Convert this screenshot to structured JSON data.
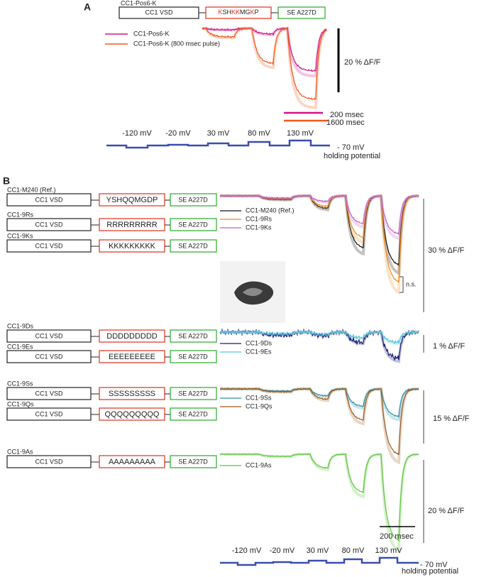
{
  "panel_a": {
    "label": "A",
    "construct": {
      "name": "CC1-Pos6-K",
      "vsd": "CC1 VSD",
      "linker_segments": [
        {
          "text": "K",
          "color": "#e0301e"
        },
        {
          "text": "SH",
          "color": "#222222"
        },
        {
          "text": "KK",
          "color": "#e0301e"
        },
        {
          "text": "MG",
          "color": "#222222"
        },
        {
          "text": "K",
          "color": "#e0301e"
        },
        {
          "text": "P",
          "color": "#222222"
        }
      ],
      "fp": "SE A227D"
    },
    "legend": [
      {
        "name": "CC1-Pos6-K",
        "color": "#d4148c"
      },
      {
        "name": "CC1-Pos6-K (800 msec pulse)",
        "color": "#f05a1e"
      }
    ],
    "scale": "20 % ΔF/F",
    "time_bars": [
      {
        "label": "200 msec",
        "color": "#d4148c"
      },
      {
        "label": "1600 msec",
        "color": "#f05a1e"
      }
    ],
    "voltages": [
      "-120 mV",
      "-20 mV",
      "30 mV",
      "80 mV",
      "130 mV"
    ],
    "holding": [
      "- 70 mV",
      "holding potential"
    ]
  },
  "panel_b": {
    "label": "B",
    "groups": [
      {
        "constructs": [
          {
            "name": "CC1-M240 (Ref.)",
            "vsd": "CC1 VSD",
            "linker": "YSHQQMGDP",
            "linker_color": "#222222",
            "fp": "SE A227D"
          },
          {
            "name": "CC1-9Rs",
            "vsd": "CC1 VSD",
            "linker": "RRRRRRRRR",
            "linker_color": "#e0301e",
            "fp": "SE A227D"
          },
          {
            "name": "CC1-9Ks",
            "vsd": "CC1 VSD",
            "linker": "KKKKKKKKK",
            "linker_color": "#e0301e",
            "fp": "SE A227D"
          }
        ],
        "legend": [
          {
            "name": "CC1-M240 (Ref.)",
            "color": "#111111"
          },
          {
            "name": "CC1-9Rs",
            "color": "#ee8a1e"
          },
          {
            "name": "CC1-9Ks",
            "color": "#c462c8"
          }
        ],
        "scale": "30 % ΔF/F",
        "note": "n.s."
      },
      {
        "constructs": [
          {
            "name": "CC1-9Ds",
            "vsd": "CC1 VSD",
            "linker": "DDDDDDDDD",
            "linker_color": "#4fb3d6",
            "fp": "SE A227D"
          },
          {
            "name": "CC1-9Es",
            "vsd": "CC1 VSD",
            "linker": "EEEEEEEEE",
            "linker_color": "#4fb3d6",
            "fp": "SE A227D"
          }
        ],
        "legend": [
          {
            "name": "CC1-9Ds",
            "color": "#1c1c78"
          },
          {
            "name": "CC1-9Es",
            "color": "#5cc4dc"
          }
        ],
        "scale": "1 % ΔF/F"
      },
      {
        "constructs": [
          {
            "name": "CC1-9Ss",
            "vsd": "CC1 VSD",
            "linker": "SSSSSSSSS",
            "linker_color": "#222222",
            "fp": "SE A227D"
          },
          {
            "name": "CC1-9Qs",
            "vsd": "CC1 VSD",
            "linker": "QQQQQQQQQ",
            "linker_color": "#222222",
            "fp": "SE A227D"
          }
        ],
        "legend": [
          {
            "name": "CC1-9Ss",
            "color": "#2a93a6"
          },
          {
            "name": "CC1-9Qs",
            "color": "#9a5a1e"
          }
        ],
        "scale": "15 % ΔF/F"
      },
      {
        "constructs": [
          {
            "name": "CC1-9As",
            "vsd": "CC1 VSD",
            "linker": "AAAAAAAAA",
            "linker_color": "#222222",
            "fp": "SE A227D"
          }
        ],
        "legend": [
          {
            "name": "CC1-9As",
            "color": "#5cc43a"
          }
        ],
        "scale": "20 % ΔF/F"
      }
    ],
    "time_bar": "200 msec",
    "voltages": [
      "-120 mV",
      "-20 mV",
      "30 mV",
      "80 mV",
      "130 mV"
    ],
    "holding": [
      "- 70 mV",
      "holding potential"
    ]
  }
}
